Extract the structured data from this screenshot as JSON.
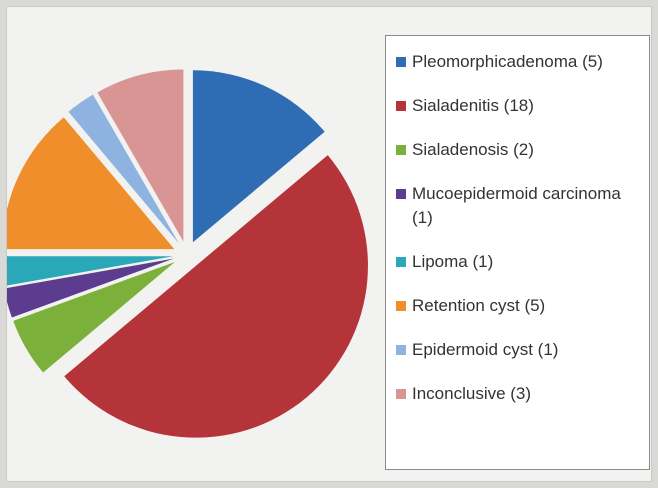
{
  "chart_data": {
    "type": "pie",
    "categories": [
      "Pleomorphicadenoma (5)",
      "Sialadenitis (18)",
      "Sialadenosis (2)",
      "Mucoepidermoid carcinoma (1)",
      "Lipoma (1)",
      "Retention cyst (5)",
      "Epidermoid cyst (1)",
      "Inconclusive (3)"
    ],
    "values": [
      5,
      18,
      2,
      1,
      1,
      5,
      1,
      3
    ],
    "colors": [
      "#2e6db3",
      "#b5343a",
      "#7bb03a",
      "#5b3c8f",
      "#2aa7b8",
      "#ef8e2b",
      "#8fb3e0",
      "#d99494"
    ],
    "legend": "right"
  }
}
